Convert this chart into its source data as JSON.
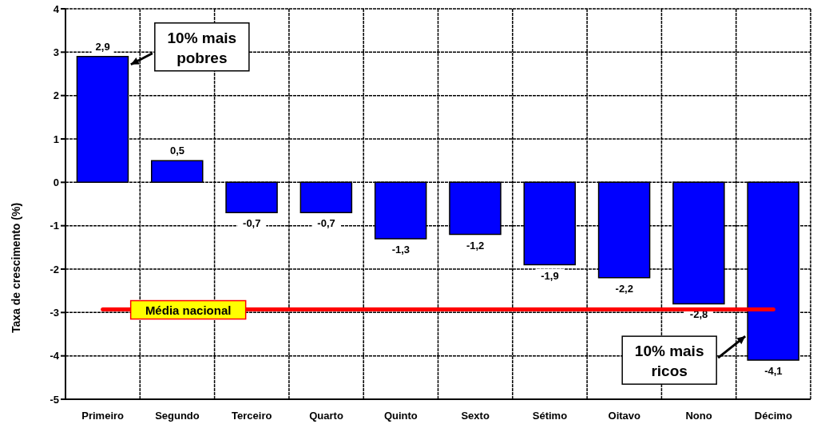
{
  "chart_data": {
    "type": "bar",
    "ylabel": "Taxa de crescimento (%)",
    "categories": [
      "Primeiro",
      "Segundo",
      "Terceiro",
      "Quarto",
      "Quinto",
      "Sexto",
      "Sétimo",
      "Oitavo",
      "Nono",
      "Décimo"
    ],
    "values": [
      2.9,
      0.5,
      -0.7,
      -0.7,
      -1.3,
      -1.2,
      -1.9,
      -2.2,
      -2.8,
      -4.1
    ],
    "value_labels": [
      "2,9",
      "0,5",
      "-0,7",
      "-0,7",
      "-1,3",
      "-1,2",
      "-1,9",
      "-2,2",
      "-2,8",
      "-4,1"
    ],
    "color": "#0000ff",
    "ylim": [
      -5,
      4
    ],
    "yticks": [
      -5,
      -4,
      -3,
      -2,
      -1,
      0,
      1,
      2,
      3,
      4
    ],
    "grid": true,
    "ref_lines": [
      {
        "axis": "y",
        "value": -2.93,
        "label": "Média nacional",
        "color": "#ff0000"
      }
    ],
    "annotations": [
      "10% mais pobres",
      "10% mais ricos"
    ]
  }
}
